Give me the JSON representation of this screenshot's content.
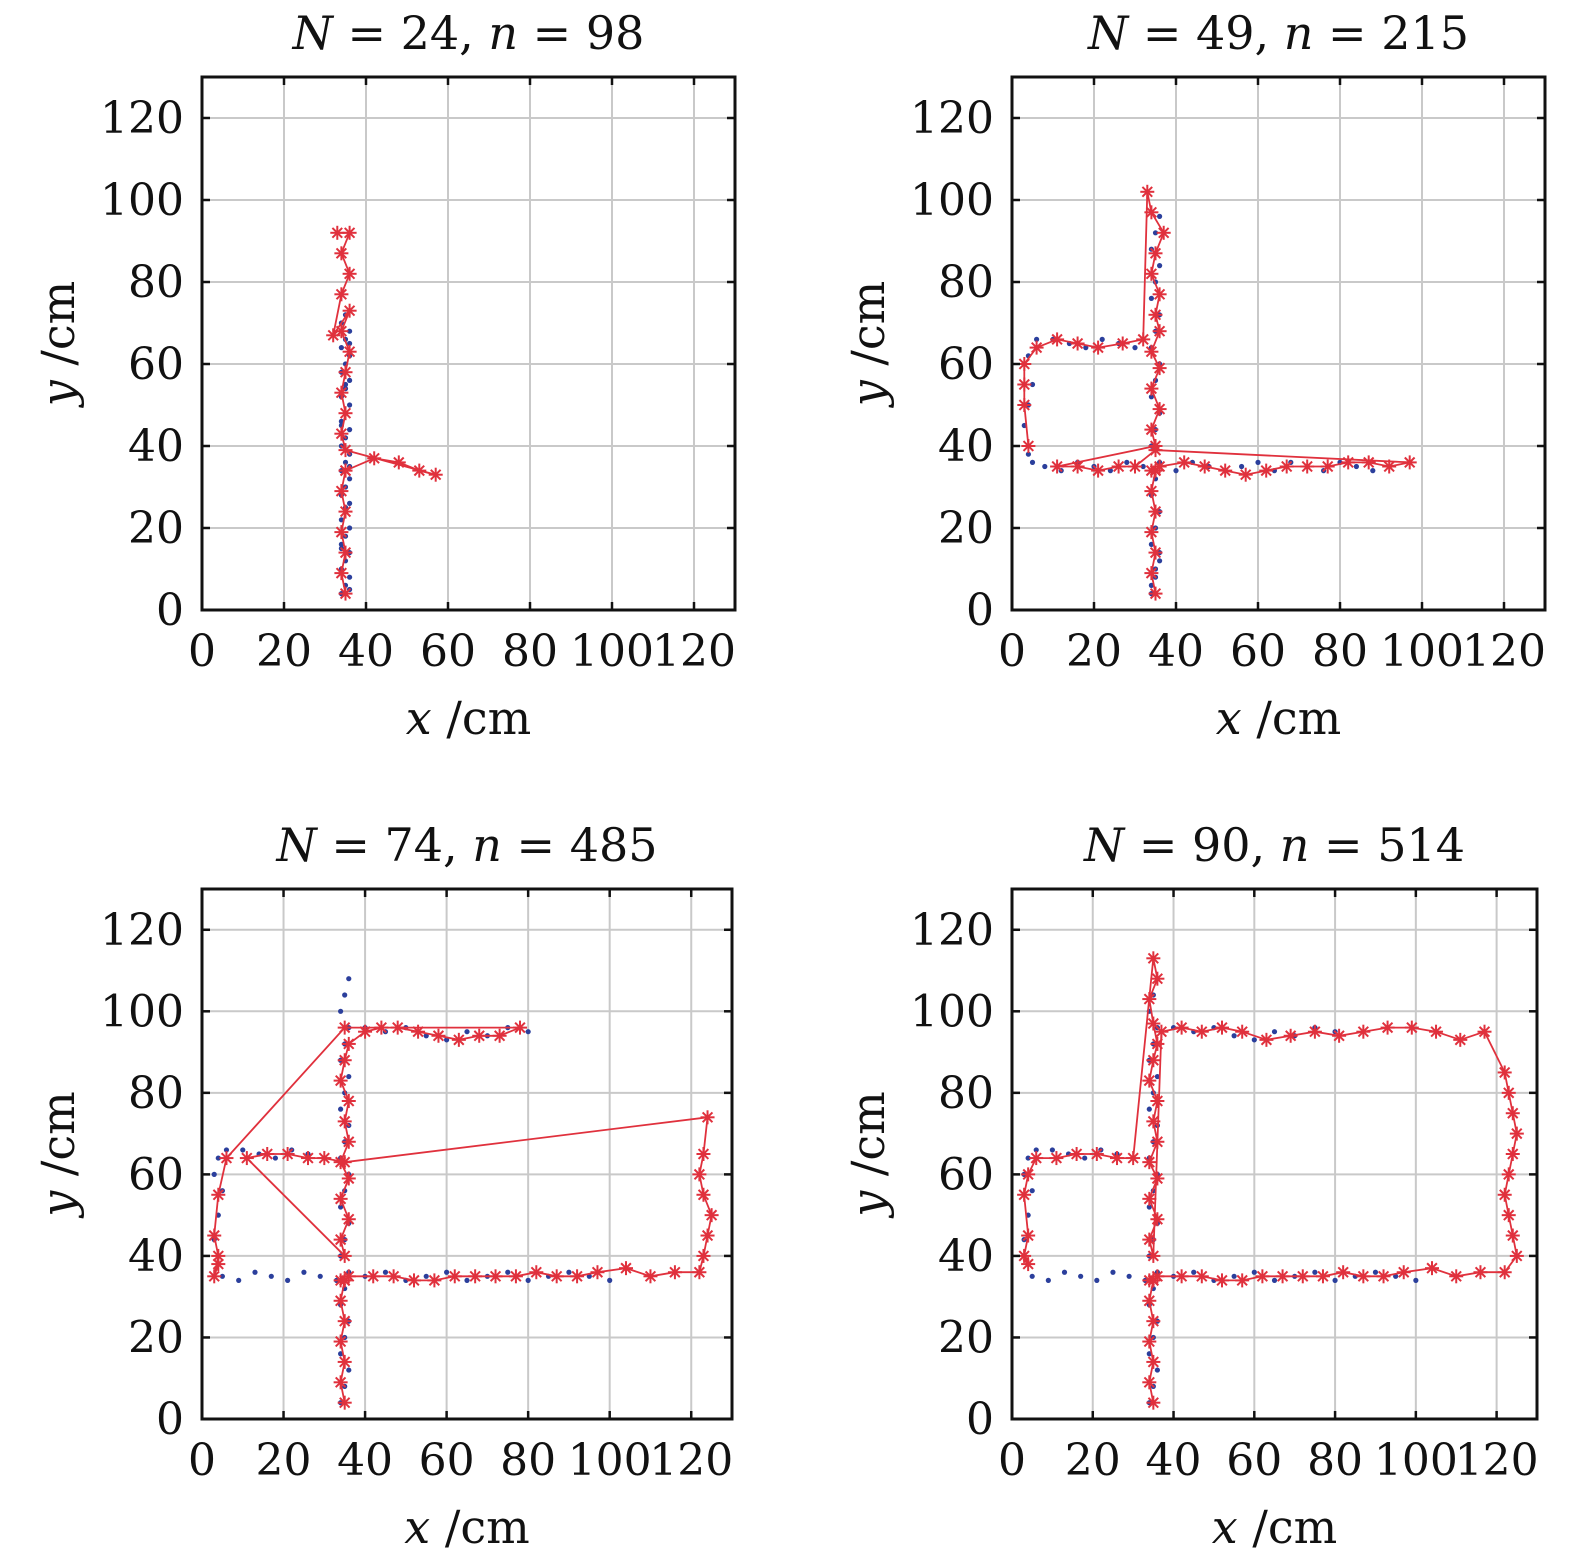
{
  "chart_data": [
    {
      "type": "scatter",
      "title": "N = 24, n = 98",
      "title_parts": [
        "N",
        " = 24, ",
        "n",
        " = 98"
      ],
      "xlabel_var": "x",
      "xlabel_unit": " /cm",
      "ylabel_var": "y",
      "ylabel_unit": " /cm",
      "xlim": [
        0,
        130
      ],
      "ylim": [
        0,
        130
      ],
      "xticks": [
        0,
        20,
        40,
        60,
        80,
        100,
        120
      ],
      "yticks": [
        0,
        20,
        40,
        60,
        80,
        100,
        120
      ],
      "grid": true,
      "segments": [
        {
          "x": [
            [
              34,
              36
            ],
            [
              34,
              36
            ]
          ],
          "y": [
            [
              3,
              38
            ],
            [
              38,
              72
            ]
          ]
        }
      ],
      "series": [
        {
          "marker": "dot",
          "color": "#2b3f9c",
          "x": [
            34,
            35,
            36,
            34,
            35,
            36,
            34,
            35,
            36,
            34,
            35,
            36,
            34,
            35,
            36,
            34,
            35,
            36,
            34,
            35,
            36,
            34,
            35,
            36,
            34,
            35,
            36,
            34,
            35,
            36,
            34,
            35,
            36,
            34,
            35,
            36,
            34,
            35,
            36,
            34,
            35,
            36
          ],
          "y": [
            4,
            6,
            8,
            10,
            12,
            14,
            16,
            18,
            20,
            22,
            24,
            26,
            28,
            30,
            32,
            34,
            36,
            38,
            40,
            42,
            44,
            46,
            48,
            50,
            52,
            54,
            56,
            58,
            60,
            62,
            64,
            66,
            68,
            70,
            72,
            5,
            15,
            25,
            35,
            45,
            55,
            65
          ]
        },
        {
          "marker": "star",
          "color": "#e0313d",
          "line": true,
          "x": [
            35,
            34,
            35,
            34,
            35,
            34,
            35,
            35,
            42,
            48,
            53,
            57,
            35,
            34,
            35,
            34,
            35,
            36,
            34,
            36,
            32,
            34,
            36,
            34,
            36,
            33
          ],
          "y": [
            4,
            9,
            14,
            19,
            24,
            29,
            34,
            34,
            37,
            36,
            34,
            33,
            39,
            43,
            48,
            53,
            58,
            63,
            68,
            73,
            67,
            77,
            82,
            87,
            92,
            92
          ]
        }
      ]
    },
    {
      "type": "scatter",
      "title": "N = 49, n = 215",
      "title_parts": [
        "N",
        " = 49, ",
        "n",
        " = 215"
      ],
      "xlabel_var": "x",
      "xlabel_unit": " /cm",
      "ylabel_var": "y",
      "ylabel_unit": " /cm",
      "xlim": [
        0,
        130
      ],
      "ylim": [
        0,
        130
      ],
      "xticks": [
        0,
        20,
        40,
        60,
        80,
        100,
        120
      ],
      "yticks": [
        0,
        20,
        40,
        60,
        80,
        100,
        120
      ],
      "grid": true,
      "series": [
        {
          "marker": "dot",
          "color": "#2b3f9c",
          "x": [
            34,
            35,
            36,
            34,
            35,
            36,
            34,
            35,
            36,
            34,
            35,
            36,
            34,
            35,
            36,
            34,
            35,
            36,
            34,
            35,
            36,
            34,
            35,
            36,
            34,
            35,
            36,
            5,
            8,
            12,
            16,
            20,
            24,
            28,
            32,
            40,
            44,
            48,
            52,
            56,
            60,
            64,
            68,
            72,
            76,
            80,
            84,
            88,
            4,
            3,
            4,
            5,
            3,
            4,
            6,
            10,
            14,
            18,
            22,
            26,
            30
          ],
          "y": [
            4,
            8,
            12,
            16,
            20,
            24,
            28,
            32,
            36,
            40,
            44,
            48,
            52,
            56,
            60,
            64,
            68,
            72,
            76,
            80,
            84,
            88,
            92,
            96,
            6,
            10,
            14,
            36,
            35,
            34,
            36,
            35,
            34,
            36,
            35,
            34,
            36,
            35,
            34,
            35,
            36,
            34,
            36,
            35,
            34,
            36,
            35,
            34,
            38,
            45,
            50,
            55,
            60,
            62,
            66,
            66,
            65,
            64,
            66,
            65,
            64
          ]
        },
        {
          "marker": "star",
          "color": "#e0313d",
          "line": true,
          "x": [
            35,
            34,
            35,
            34,
            35,
            34,
            35,
            34,
            35,
            36,
            42,
            47,
            52,
            57,
            62,
            67,
            72,
            77,
            82,
            87,
            92,
            97,
            35,
            30,
            26,
            21,
            16,
            11,
            35,
            34,
            36,
            34,
            36,
            34,
            36,
            35,
            36,
            34,
            35,
            37,
            34,
            33,
            32,
            27,
            21,
            16,
            11,
            6,
            3,
            3,
            3,
            4
          ],
          "y": [
            4,
            9,
            14,
            19,
            24,
            29,
            34,
            34,
            34,
            35,
            36,
            35,
            34,
            33,
            34,
            35,
            35,
            35,
            36,
            36,
            35,
            36,
            39,
            35,
            35,
            34,
            35,
            35,
            40,
            44,
            49,
            54,
            59,
            63,
            68,
            72,
            77,
            82,
            87,
            92,
            97,
            102,
            66,
            65,
            64,
            65,
            66,
            64,
            60,
            55,
            50,
            40
          ]
        }
      ]
    },
    {
      "type": "scatter",
      "title": "N = 74, n = 485",
      "title_parts": [
        "N",
        " = 74, ",
        "n",
        " = 485"
      ],
      "xlabel_var": "x",
      "xlabel_unit": " /cm",
      "ylabel_var": "y",
      "ylabel_unit": " /cm",
      "xlim": [
        0,
        130
      ],
      "ylim": [
        0,
        130
      ],
      "xticks": [
        0,
        20,
        40,
        60,
        80,
        100,
        120
      ],
      "yticks": [
        0,
        20,
        40,
        60,
        80,
        100,
        120
      ],
      "grid": true,
      "series": [
        {
          "marker": "dot",
          "color": "#2b3f9c",
          "x": [
            34,
            35,
            36,
            34,
            35,
            36,
            34,
            35,
            36,
            34,
            35,
            36,
            34,
            35,
            36,
            34,
            35,
            36,
            34,
            35,
            36,
            34,
            35,
            36,
            34,
            35,
            36,
            5,
            9,
            13,
            17,
            21,
            25,
            29,
            33,
            40,
            45,
            50,
            55,
            60,
            65,
            70,
            75,
            80,
            85,
            90,
            95,
            100,
            4,
            3,
            4,
            5,
            3,
            4,
            6,
            10,
            14,
            18,
            22,
            26,
            30,
            40,
            45,
            50,
            55,
            60,
            65,
            70,
            75,
            80
          ],
          "y": [
            4,
            8,
            12,
            16,
            20,
            24,
            28,
            32,
            36,
            40,
            44,
            48,
            52,
            56,
            60,
            64,
            68,
            72,
            76,
            80,
            84,
            88,
            92,
            96,
            100,
            104,
            108,
            35,
            34,
            36,
            35,
            34,
            36,
            35,
            34,
            35,
            36,
            34,
            35,
            36,
            34,
            35,
            36,
            34,
            35,
            36,
            35,
            34,
            38,
            44,
            50,
            56,
            60,
            64,
            66,
            66,
            65,
            64,
            66,
            65,
            64,
            96,
            95,
            96,
            94,
            93,
            95,
            94,
            96,
            95
          ]
        },
        {
          "marker": "star",
          "color": "#e0313d",
          "line": true,
          "x": [
            35,
            34,
            35,
            34,
            35,
            34,
            35,
            34,
            35,
            36,
            42,
            47,
            52,
            57,
            62,
            67,
            72,
            77,
            82,
            87,
            92,
            97,
            104,
            110,
            116,
            122,
            123,
            124,
            125,
            123,
            122,
            123,
            124,
            35,
            30,
            26,
            21,
            16,
            11,
            35,
            34,
            36,
            34,
            36,
            34,
            36,
            35,
            36,
            34,
            35,
            36,
            40,
            44,
            48,
            53,
            58,
            63,
            68,
            73,
            78,
            35,
            6,
            4,
            3,
            4,
            3,
            4
          ],
          "y": [
            4,
            9,
            14,
            19,
            24,
            29,
            34,
            34,
            34,
            35,
            35,
            35,
            34,
            34,
            35,
            35,
            35,
            35,
            36,
            35,
            35,
            36,
            37,
            35,
            36,
            36,
            40,
            45,
            50,
            55,
            60,
            65,
            74,
            63,
            64,
            64,
            65,
            65,
            64,
            40,
            44,
            49,
            54,
            59,
            63,
            68,
            73,
            78,
            83,
            88,
            92,
            95,
            96,
            96,
            95,
            94,
            93,
            94,
            94,
            96,
            96,
            64,
            55,
            45,
            40,
            35,
            38
          ]
        }
      ]
    },
    {
      "type": "scatter",
      "title": "N = 90, n = 514",
      "title_parts": [
        "N",
        " = 90, ",
        "n",
        " = 514"
      ],
      "xlabel_var": "x",
      "xlabel_unit": " /cm",
      "ylabel_var": "y",
      "ylabel_unit": " /cm",
      "xlim": [
        0,
        130
      ],
      "ylim": [
        0,
        130
      ],
      "xticks": [
        0,
        20,
        40,
        60,
        80,
        100,
        120
      ],
      "yticks": [
        0,
        20,
        40,
        60,
        80,
        100,
        120
      ],
      "grid": true,
      "series": [
        {
          "marker": "dot",
          "color": "#2b3f9c",
          "x": [
            34,
            35,
            36,
            34,
            35,
            36,
            34,
            35,
            36,
            34,
            35,
            36,
            34,
            35,
            36,
            34,
            35,
            36,
            34,
            35,
            36,
            34,
            35,
            36,
            34,
            35,
            36,
            5,
            9,
            13,
            17,
            21,
            25,
            29,
            33,
            40,
            45,
            50,
            55,
            60,
            65,
            70,
            75,
            80,
            85,
            90,
            95,
            100,
            4,
            3,
            4,
            5,
            3,
            4,
            6,
            10,
            14,
            18,
            22,
            26,
            30,
            40,
            45,
            50,
            55,
            60,
            65,
            70,
            75,
            80
          ],
          "y": [
            4,
            8,
            12,
            16,
            20,
            24,
            28,
            32,
            36,
            40,
            44,
            48,
            52,
            56,
            60,
            64,
            68,
            72,
            76,
            80,
            84,
            88,
            92,
            96,
            100,
            104,
            108,
            35,
            34,
            36,
            35,
            34,
            36,
            35,
            34,
            35,
            36,
            34,
            35,
            36,
            34,
            35,
            36,
            34,
            35,
            36,
            35,
            34,
            38,
            44,
            50,
            56,
            60,
            64,
            66,
            66,
            65,
            64,
            66,
            65,
            64,
            96,
            95,
            96,
            94,
            93,
            95,
            94,
            96,
            95
          ]
        },
        {
          "marker": "star",
          "color": "#e0313d",
          "line": true,
          "x": [
            35,
            34,
            35,
            34,
            35,
            34,
            35,
            34,
            35,
            36,
            42,
            47,
            52,
            57,
            62,
            67,
            72,
            77,
            82,
            87,
            92,
            97,
            104,
            110,
            116,
            122,
            125,
            124,
            123,
            122,
            123,
            124,
            125,
            124,
            123,
            122,
            117,
            111,
            105,
            99,
            93,
            87,
            81,
            75,
            69,
            63,
            57,
            52,
            47,
            42,
            37,
            35,
            34,
            36,
            34,
            36,
            34,
            36,
            35,
            36,
            34,
            35,
            36,
            35,
            34,
            36,
            35,
            30,
            26,
            21,
            16,
            11,
            6,
            4,
            3,
            4,
            3,
            4
          ],
          "y": [
            4,
            9,
            14,
            19,
            24,
            29,
            34,
            34,
            34,
            35,
            35,
            35,
            34,
            34,
            35,
            35,
            35,
            35,
            36,
            35,
            35,
            36,
            37,
            35,
            36,
            36,
            40,
            45,
            50,
            55,
            60,
            65,
            70,
            75,
            80,
            85,
            95,
            93,
            95,
            96,
            96,
            95,
            94,
            95,
            94,
            93,
            95,
            96,
            95,
            96,
            95,
            40,
            44,
            49,
            54,
            59,
            63,
            68,
            73,
            78,
            83,
            88,
            92,
            97,
            103,
            108,
            113,
            64,
            64,
            65,
            65,
            64,
            64,
            60,
            55,
            45,
            40,
            38
          ]
        }
      ]
    }
  ]
}
